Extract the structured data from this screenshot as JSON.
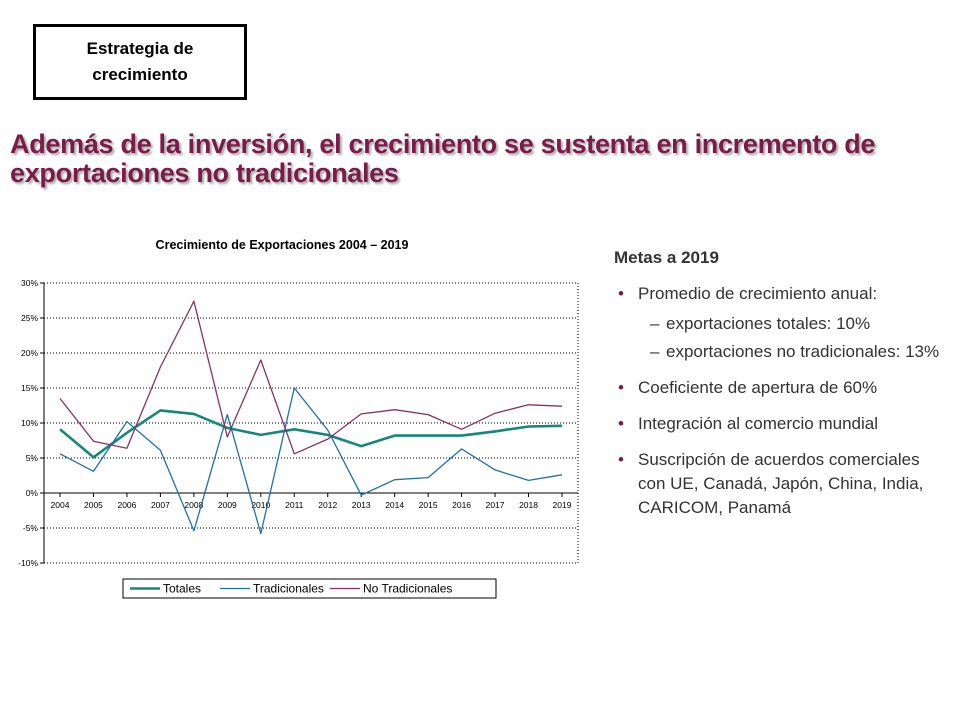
{
  "tag": {
    "line1": "Estrategia de",
    "line2": "crecimiento"
  },
  "headline": {
    "line1": "Además de la inversión, el crecimiento se sustenta en incremento de",
    "line2": "exportaciones no tradicionales"
  },
  "goals": {
    "title": "Metas a 2019",
    "items": [
      {
        "text": "Promedio de crecimiento anual:",
        "sub": [
          "exportaciones totales: 10%",
          "exportaciones no tradicionales: 13%"
        ]
      },
      {
        "text": "Coeficiente de apertura de 60%"
      },
      {
        "text": "Integración al comercio mundial"
      },
      {
        "text": "Suscripción de acuerdos comerciales con UE, Canadá, Japón, China, India, CARICOM, Panamá"
      }
    ],
    "bullet": "•",
    "dash": "–"
  },
  "chart_data": {
    "type": "line",
    "title": "Crecimiento de Exportaciones 2004 – 2019",
    "xlabel": "",
    "ylabel": "",
    "categories": [
      "2004",
      "2005",
      "2006",
      "2007",
      "2008",
      "2009",
      "2010",
      "2011",
      "2012",
      "2013",
      "2014",
      "2015",
      "2016",
      "2017",
      "2018",
      "2019"
    ],
    "ylim": [
      -10,
      30
    ],
    "yticks": [
      -10,
      -5,
      0,
      5,
      10,
      15,
      20,
      25,
      30
    ],
    "ytick_labels": [
      "-10%",
      "-5%",
      "0%",
      "5%",
      "10%",
      "15%",
      "20%",
      "25%",
      "30%"
    ],
    "grid": "horizontal-dotted",
    "legend_position": "bottom",
    "series": [
      {
        "name": "Totales",
        "color": "#17877a",
        "width_style": "thick",
        "values": [
          9.1,
          5.1,
          8.6,
          11.8,
          11.3,
          9.3,
          8.3,
          9.1,
          8.3,
          6.7,
          8.2,
          8.2,
          8.2,
          8.8,
          9.5,
          9.6
        ]
      },
      {
        "name": "Tradicionales",
        "color": "#1f6fae",
        "width_style": "thin",
        "values": [
          5.6,
          3.1,
          10.2,
          6.1,
          -5.4,
          11.2,
          -5.8,
          15.0,
          9.0,
          -0.3,
          1.9,
          2.2,
          6.3,
          3.3,
          1.8,
          2.6
        ]
      },
      {
        "name": "No Tradicionales",
        "color": "#8b3064",
        "width_style": "thin",
        "values": [
          13.5,
          7.4,
          6.4,
          18.0,
          27.4,
          8.0,
          19.0,
          5.6,
          7.7,
          11.3,
          11.9,
          11.2,
          9.1,
          11.4,
          12.6,
          12.4
        ]
      }
    ]
  }
}
